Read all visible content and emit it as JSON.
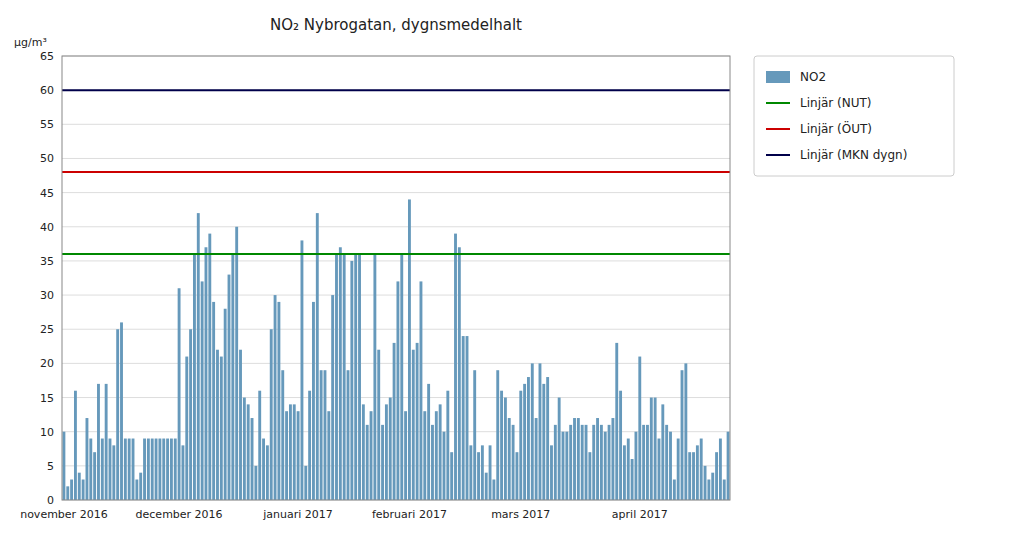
{
  "chart_data": {
    "type": "bar",
    "title": "NO₂ Nybrogatan,  dygnsmedelhalt",
    "ylabel": "μg/m³",
    "categories": [
      "november 2016",
      null,
      null,
      null,
      null,
      null,
      null,
      null,
      null,
      null,
      null,
      null,
      null,
      null,
      null,
      null,
      null,
      null,
      null,
      null,
      null,
      null,
      null,
      null,
      null,
      null,
      null,
      null,
      null,
      null,
      "december 2016",
      null,
      null,
      null,
      null,
      null,
      null,
      null,
      null,
      null,
      null,
      null,
      null,
      null,
      null,
      null,
      null,
      null,
      null,
      null,
      null,
      null,
      null,
      null,
      null,
      null,
      null,
      null,
      null,
      null,
      null,
      "januari 2017",
      null,
      null,
      null,
      null,
      null,
      null,
      null,
      null,
      null,
      null,
      null,
      null,
      null,
      null,
      null,
      null,
      null,
      null,
      null,
      null,
      null,
      null,
      null,
      null,
      null,
      null,
      null,
      null,
      "februari 2017",
      null,
      null,
      null,
      null,
      null,
      null,
      null,
      null,
      null,
      null,
      null,
      null,
      null,
      null,
      null,
      null,
      null,
      null,
      null,
      null,
      null,
      null,
      null,
      null,
      null,
      null,
      null,
      null,
      "mars 2017",
      null,
      null,
      null,
      null,
      null,
      null,
      null,
      null,
      null,
      null,
      null,
      null,
      null,
      null,
      null,
      null,
      null,
      null,
      null,
      null,
      null,
      null,
      null,
      null,
      null,
      null,
      null,
      null,
      null,
      null,
      "april 2017",
      null,
      null,
      null,
      null,
      null,
      null,
      null,
      null,
      null,
      null,
      null,
      null,
      null,
      null,
      null,
      null,
      null,
      null,
      null,
      null,
      null,
      null,
      null
    ],
    "series": [
      {
        "name": "NO2",
        "type": "bar",
        "color": "#6699BB",
        "values": [
          10,
          2,
          3,
          16,
          4,
          3,
          12,
          9,
          7,
          17,
          9,
          17,
          9,
          8,
          25,
          26,
          9,
          9,
          9,
          3,
          4,
          9,
          9,
          9,
          9,
          9,
          9,
          9,
          9,
          9,
          31,
          8,
          21,
          25,
          36,
          42,
          32,
          37,
          39,
          29,
          22,
          21,
          28,
          33,
          36,
          40,
          22,
          15,
          14,
          12,
          5,
          16,
          9,
          8,
          25,
          30,
          29,
          19,
          13,
          14,
          14,
          13,
          38,
          5,
          16,
          29,
          42,
          19,
          19,
          13,
          30,
          36,
          37,
          36,
          19,
          35,
          36,
          36,
          14,
          11,
          13,
          36,
          22,
          11,
          14,
          15,
          23,
          32,
          36,
          13,
          44,
          22,
          23,
          32,
          13,
          17,
          11,
          13,
          14,
          10,
          16,
          7,
          39,
          37,
          24,
          24,
          8,
          19,
          7,
          8,
          4,
          8,
          3,
          19,
          16,
          15,
          12,
          11,
          7,
          16,
          17,
          18,
          20,
          12,
          20,
          17,
          18,
          8,
          11,
          15,
          10,
          10,
          11,
          12,
          12,
          11,
          11,
          7,
          11,
          12,
          11,
          10,
          11,
          12,
          23,
          16,
          8,
          9,
          6,
          10,
          21,
          11,
          11,
          15,
          15,
          9,
          14,
          11,
          10,
          3,
          9,
          19,
          20,
          7,
          7,
          8,
          9,
          5,
          3,
          4,
          7,
          9,
          3,
          10
        ]
      }
    ],
    "reference_lines": [
      {
        "name": "Linjär (NUT)",
        "value": 36,
        "color": "#008800"
      },
      {
        "name": "Linjär (ÖUT)",
        "value": 48,
        "color": "#CC0000"
      },
      {
        "name": "Linjär (MKN dygn)",
        "value": 60,
        "color": "#00004A"
      }
    ],
    "ylim": [
      0,
      65
    ],
    "yticks": [
      0,
      5,
      10,
      15,
      20,
      25,
      30,
      35,
      40,
      45,
      50,
      55,
      60,
      65
    ],
    "grid": true,
    "legend": "right"
  }
}
